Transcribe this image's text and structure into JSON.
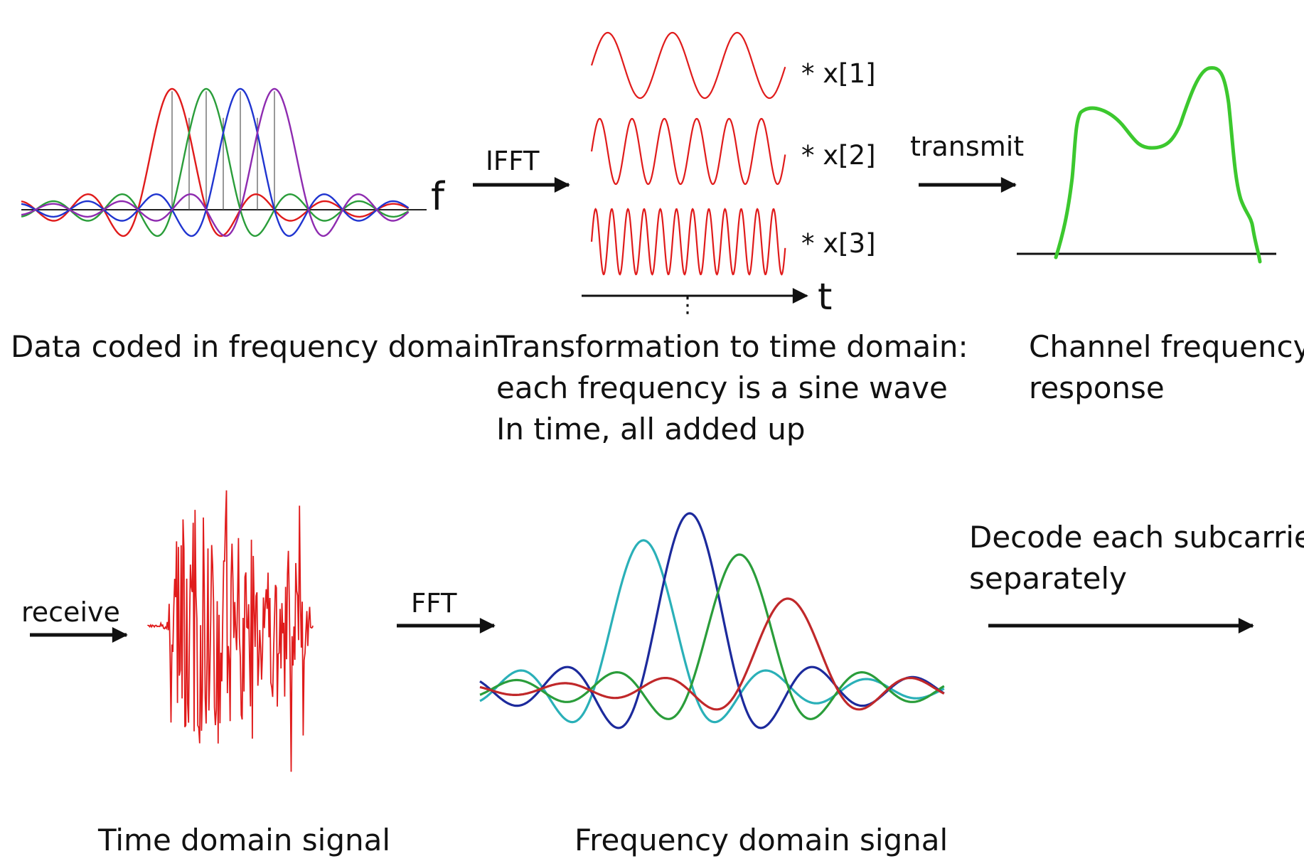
{
  "freq_panel": {
    "axis_label": "f",
    "caption": "Data coded in frequency domain"
  },
  "ifft": {
    "label": "IFFT"
  },
  "time_panel": {
    "axis_label": "t",
    "ellipsis": "⋮",
    "multipliers": [
      "* x[1]",
      "* x[2]",
      "* x[3]"
    ],
    "caption_lines": [
      "Transformation to time domain:",
      "each frequency is a sine wave",
      "In time, all added up"
    ]
  },
  "transmit": {
    "label": "transmit"
  },
  "channel_panel": {
    "caption_lines": [
      "Channel frequency",
      "response"
    ]
  },
  "receive": {
    "label": "receive"
  },
  "time_signal": {
    "caption": "Time domain signal"
  },
  "fft": {
    "label": "FFT"
  },
  "freq_signal": {
    "caption": "Frequency domain signal"
  },
  "decode": {
    "caption_lines": [
      "Decode each subcarrier",
      "separately"
    ]
  },
  "colors": {
    "red": "#e01b1b",
    "green": "#2a9d3a",
    "blue": "#2035d0",
    "purple": "#8e2bb0",
    "navy": "#1c2a9c",
    "teal": "#2ab0b8",
    "dark_red": "#c0282a",
    "channel_green": "#3cc82e",
    "black": "#111111"
  }
}
